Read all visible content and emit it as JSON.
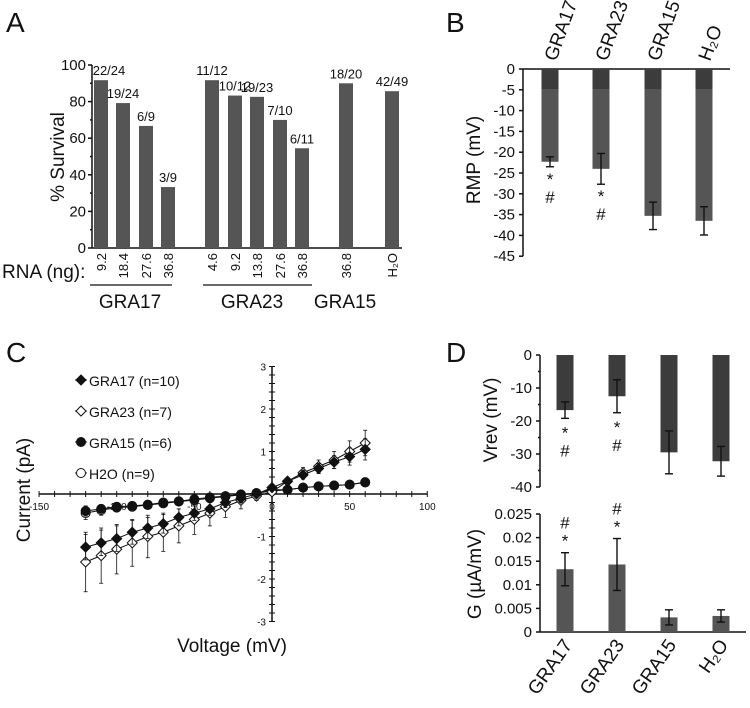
{
  "chart_data": [
    {
      "panel": "A",
      "type": "bar",
      "ylabel": "% Survival",
      "ylim": [
        0,
        100
      ],
      "yticks": [
        0,
        20,
        40,
        60,
        80,
        100
      ],
      "xlabel_prefix": "RNA (ng):",
      "categories": [
        "9.2",
        "18.4",
        "27.6",
        "36.8",
        "4.6",
        "9.2",
        "13.8",
        "27.6",
        "36.8",
        "36.8",
        "H2O"
      ],
      "groups": [
        "GRA17",
        "GRA17",
        "GRA17",
        "GRA17",
        "GRA23",
        "GRA23",
        "GRA23",
        "GRA23",
        "GRA23",
        "GRA15",
        "H2O"
      ],
      "group_labels": [
        "GRA17",
        "GRA23",
        "GRA15"
      ],
      "values": [
        91.7,
        79.2,
        66.7,
        33.3,
        91.7,
        83.3,
        82.6,
        70.0,
        54.5,
        90.0,
        85.7
      ],
      "data_labels": [
        "22/24",
        "19/24",
        "6/9",
        "3/9",
        "11/12",
        "10/12",
        "19/23",
        "7/10",
        "6/11",
        "18/20",
        "42/49"
      ]
    },
    {
      "panel": "B",
      "type": "bar",
      "ylabel": "RMP (mV)",
      "ylim": [
        -45,
        0
      ],
      "yticks": [
        0,
        -5,
        -10,
        -15,
        -20,
        -25,
        -30,
        -35,
        -40,
        -45
      ],
      "categories": [
        "GRA17",
        "GRA23",
        "GRA15",
        "H2O"
      ],
      "values": [
        -22.3,
        -24.0,
        -35.3,
        -36.5
      ],
      "errors": [
        1.2,
        3.7,
        3.3,
        3.4
      ],
      "annotations": [
        "* #",
        "* #",
        "",
        ""
      ]
    },
    {
      "panel": "C",
      "type": "line",
      "xlabel": "Voltage (mV)",
      "ylabel": "Current (pA)",
      "xlim": [
        -150,
        100
      ],
      "ylim": [
        -3,
        3
      ],
      "xticks": [
        -150,
        -100,
        -50,
        0,
        50,
        100
      ],
      "yticks": [
        -3,
        -2,
        -1,
        0,
        1,
        2,
        3
      ],
      "legend_position": "top-left",
      "x": [
        -120,
        -110,
        -100,
        -90,
        -80,
        -70,
        -60,
        -50,
        -40,
        -30,
        -20,
        -10,
        0,
        10,
        20,
        30,
        40,
        50,
        60
      ],
      "series": [
        {
          "name": "GRA17 (n=10)",
          "marker": "diamond-filled",
          "values": [
            -1.25,
            -1.15,
            -1.05,
            -0.9,
            -0.8,
            -0.7,
            -0.55,
            -0.45,
            -0.35,
            -0.2,
            -0.1,
            0.0,
            0.15,
            0.3,
            0.45,
            0.6,
            0.75,
            0.88,
            1.05
          ],
          "errors": [
            0.3,
            0.3,
            0.3,
            0.28,
            0.25,
            0.22,
            0.2,
            0.17,
            0.15,
            0.12,
            0.1,
            0.05,
            0.05,
            0.08,
            0.1,
            0.12,
            0.15,
            0.2,
            0.25
          ]
        },
        {
          "name": "GRA23 (n=7)",
          "marker": "diamond-open",
          "values": [
            -1.6,
            -1.45,
            -1.3,
            -1.15,
            -1.0,
            -0.9,
            -0.75,
            -0.6,
            -0.45,
            -0.3,
            -0.15,
            -0.05,
            0.05,
            0.3,
            0.5,
            0.65,
            0.8,
            1.0,
            1.2
          ],
          "errors": [
            0.7,
            0.65,
            0.58,
            0.55,
            0.5,
            0.45,
            0.4,
            0.35,
            0.3,
            0.25,
            0.2,
            0.1,
            0.05,
            0.08,
            0.12,
            0.15,
            0.2,
            0.25,
            0.3
          ]
        },
        {
          "name": "GRA15 (n=6)",
          "marker": "circle-filled",
          "values": [
            -0.4,
            -0.35,
            -0.3,
            -0.28,
            -0.25,
            -0.2,
            -0.17,
            -0.12,
            -0.08,
            -0.05,
            -0.01,
            0.02,
            0.1,
            0.1,
            0.15,
            0.18,
            0.2,
            0.22,
            0.27
          ],
          "errors": [
            0.12,
            0.1,
            0.1,
            0.09,
            0.08,
            0.07,
            0.06,
            0.05,
            0.05,
            0.04,
            0.03,
            0.02,
            0.02,
            0.03,
            0.04,
            0.05,
            0.05,
            0.06,
            0.08
          ]
        },
        {
          "name": "H2O (n=9)",
          "marker": "circle-open",
          "values": [
            -0.45,
            -0.38,
            -0.32,
            -0.3,
            -0.26,
            -0.22,
            -0.18,
            -0.14,
            -0.1,
            -0.06,
            -0.02,
            0.02,
            0.07,
            0.1,
            0.15,
            0.18,
            0.2,
            0.22,
            0.28
          ],
          "errors": [
            0.15,
            0.12,
            0.1,
            0.1,
            0.09,
            0.08,
            0.07,
            0.06,
            0.05,
            0.04,
            0.03,
            0.02,
            0.02,
            0.03,
            0.04,
            0.05,
            0.05,
            0.07,
            0.1
          ]
        }
      ]
    },
    {
      "panel": "D-top",
      "type": "bar",
      "ylabel": "Vrev (mV)",
      "ylim": [
        -40,
        0
      ],
      "yticks": [
        0,
        -10,
        -20,
        -30,
        -40
      ],
      "categories": [
        "GRA17",
        "GRA23",
        "GRA15",
        "H2O"
      ],
      "values": [
        -16.7,
        -12.5,
        -29.5,
        -32.2
      ],
      "errors": [
        2.5,
        5.0,
        6.5,
        4.5
      ],
      "annotations": [
        "* #",
        "* #",
        "",
        ""
      ]
    },
    {
      "panel": "D-bottom",
      "type": "bar",
      "ylabel": "G (µA/mV)",
      "ylim": [
        0,
        0.025
      ],
      "yticks": [
        0,
        0.005,
        0.01,
        0.015,
        0.02,
        0.025
      ],
      "ytick_labels": [
        "0",
        "0.005",
        "0.01",
        "0.015",
        "0.02",
        "0.025"
      ],
      "categories": [
        "GRA17",
        "GRA23",
        "GRA15",
        "H2O"
      ],
      "values": [
        0.0133,
        0.0143,
        0.0031,
        0.0034
      ],
      "errors": [
        0.0035,
        0.0055,
        0.0016,
        0.0013
      ],
      "annotations": [
        "# *",
        "# *",
        "",
        ""
      ]
    }
  ],
  "panel_labels": [
    "A",
    "B",
    "C",
    "D"
  ],
  "colors": {
    "bar": "#555555",
    "bar_top": "#3c3c3c",
    "axis": "#111111"
  }
}
